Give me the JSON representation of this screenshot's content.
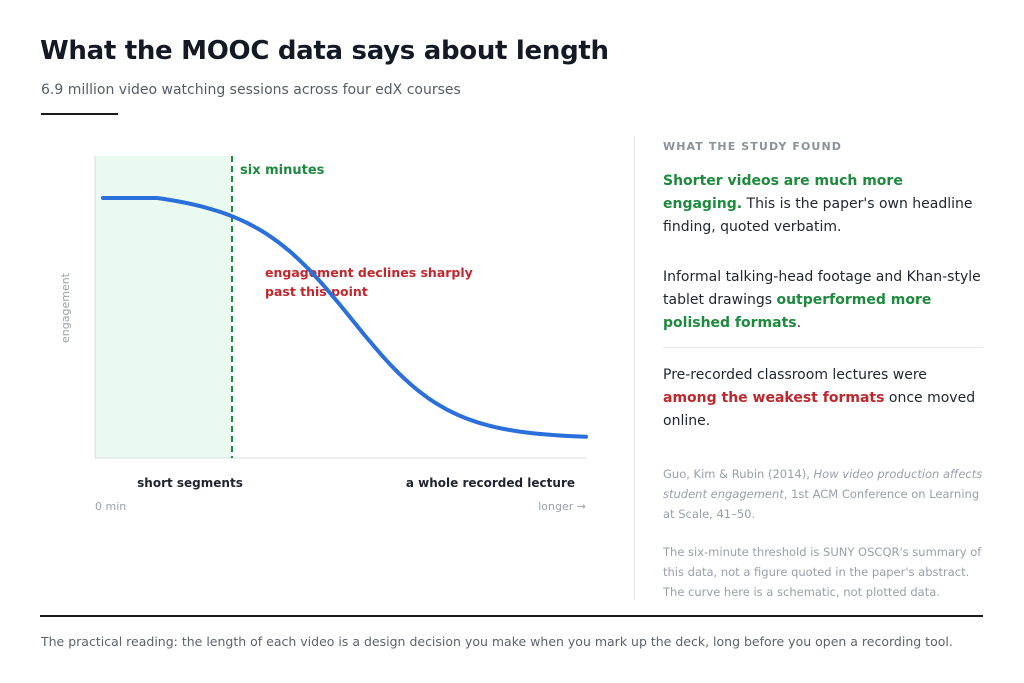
{
  "header": {
    "title": "What the MOOC data says about length",
    "subtitle": "6.9 million video watching sessions across four edX courses"
  },
  "chart_data": {
    "type": "line",
    "ylabel": "engagement",
    "x_start_label": "0 min",
    "x_end_label": "longer →",
    "threshold_label": "six minutes",
    "annotation": "engagement declines sharply past this point",
    "region_labels": [
      "short segments",
      "a whole recorded lecture"
    ],
    "note": "schematic curve, not plotted data",
    "colors": {
      "curve": "#2a6fdb",
      "threshold": "#1e8a3e",
      "annotation": "#c0272d",
      "short_region": "#eafaf0"
    }
  },
  "panel": {
    "heading": "WHAT THE STUDY FOUND",
    "finding1_highlight": "Shorter videos are much more engaging.",
    "finding1_rest": " This is the paper's own headline finding, quoted verbatim.",
    "finding2_start": "Informal talking-head footage and Khan-style tablet drawings ",
    "finding2_highlight": "outperformed more polished formats",
    "finding2_end": ".",
    "finding3_start": "Pre-recorded classroom lectures were ",
    "finding3_highlight": "among the weakest formats",
    "finding3_end": " once moved online.",
    "citation_authors": "Guo, Kim & Rubin (2014), ",
    "citation_title": "How video production affects student engagement",
    "citation_rest": ", 1st ACM Conference on Learning at Scale, 41–50.",
    "note": "The six-minute threshold is SUNY OSCQR's summary of this data, not a figure quoted in the paper's abstract. The curve here is a schematic, not plotted data."
  },
  "footer": {
    "text": "The practical reading: the length of each video is a design decision you make when you mark up the deck, long before you open a recording tool."
  }
}
